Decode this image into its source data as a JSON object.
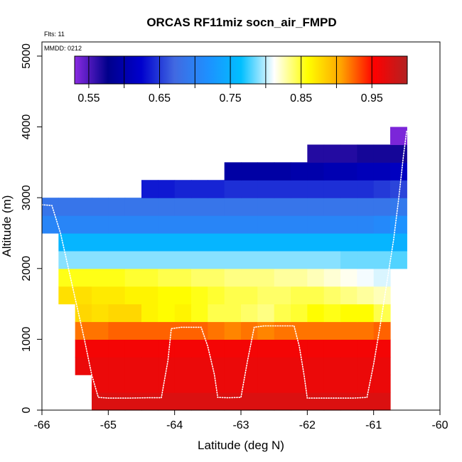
{
  "chart_data": {
    "type": "heatmap",
    "title": "ORCAS RF11miz socn_air_FMPD",
    "xlabel": "Latitude (deg N)",
    "ylabel": "Altitude (m)",
    "xlim": [
      -66,
      -60
    ],
    "ylim": [
      0,
      5200
    ],
    "xticks": [
      -66,
      -65,
      -64,
      -63,
      -62,
      -61,
      -60
    ],
    "yticks": [
      0,
      1000,
      2000,
      3000,
      4000,
      5000
    ],
    "annotations": {
      "flights": "Flts: 11",
      "date": "MMDD: 0212"
    },
    "colorbar": {
      "range": [
        0.53,
        1.0
      ],
      "ticks": [
        0.55,
        0.65,
        0.75,
        0.85,
        0.95
      ],
      "boundaries": [
        0.55,
        0.6,
        0.65,
        0.7,
        0.75,
        0.8,
        0.85,
        0.9,
        0.95
      ],
      "stops": [
        "#8a2be2",
        "#00008b",
        "#0000cd",
        "#4169e1",
        "#1e90ff",
        "#00bfff",
        "#ffffff",
        "#ffff00",
        "#ffa500",
        "#ff0000",
        "#b22222"
      ]
    },
    "x_min": -66.0,
    "dx": 0.25,
    "dy": 250,
    "rows": [
      {
        "y": 0,
        "start": 3,
        "values": [
          0.975,
          0.975,
          0.975,
          0.975,
          0.975,
          0.975,
          0.975,
          0.975,
          0.975,
          0.975,
          0.975,
          0.975,
          0.975,
          0.975,
          0.975,
          0.975,
          0.975,
          0.975
        ]
      },
      {
        "y": 250,
        "start": 3,
        "values": [
          0.965,
          0.965,
          0.965,
          0.965,
          0.965,
          0.965,
          0.965,
          0.965,
          0.965,
          0.965,
          0.965,
          0.965,
          0.965,
          0.965,
          0.965,
          0.965,
          0.965,
          0.965
        ]
      },
      {
        "y": 500,
        "start": 2,
        "values": [
          0.965,
          0.965,
          0.965,
          0.965,
          0.965,
          0.965,
          0.965,
          0.965,
          0.965,
          0.965,
          0.965,
          0.965,
          0.965,
          0.965,
          0.965,
          0.965,
          0.965,
          0.965,
          0.965
        ]
      },
      {
        "y": 750,
        "start": 2,
        "values": [
          0.96,
          0.96,
          0.96,
          0.96,
          0.96,
          0.96,
          0.96,
          0.96,
          0.96,
          0.96,
          0.96,
          0.96,
          0.96,
          0.96,
          0.96,
          0.96,
          0.96,
          0.96,
          0.96
        ]
      },
      {
        "y": 1000,
        "start": 2,
        "values": [
          0.92,
          0.92,
          0.925,
          0.925,
          0.925,
          0.925,
          0.925,
          0.925,
          0.92,
          0.915,
          0.92,
          0.915,
          0.92,
          0.92,
          0.92,
          0.92,
          0.92,
          0.92,
          0.925
        ]
      },
      {
        "y": 1250,
        "start": 2,
        "values": [
          0.88,
          0.875,
          0.88,
          0.88,
          0.865,
          0.86,
          0.865,
          0.855,
          0.845,
          0.845,
          0.84,
          0.835,
          0.845,
          0.85,
          0.86,
          0.855,
          0.86,
          0.86,
          0.845
        ]
      },
      {
        "y": 1500,
        "start": 1,
        "values": [
          0.875,
          0.875,
          0.87,
          0.87,
          0.865,
          0.865,
          0.86,
          0.86,
          0.855,
          0.85,
          0.845,
          0.845,
          0.84,
          0.84,
          0.845,
          0.845,
          0.84,
          0.835,
          0.83,
          0.825
        ]
      },
      {
        "y": 1750,
        "start": 1,
        "values": [
          0.855,
          0.855,
          0.855,
          0.855,
          0.85,
          0.85,
          0.845,
          0.845,
          0.84,
          0.84,
          0.835,
          0.835,
          0.835,
          0.83,
          0.83,
          0.825,
          0.82,
          0.815,
          0.81,
          0.805
        ]
      },
      {
        "y": 2000,
        "start": 1,
        "values": [
          0.79,
          0.79,
          0.79,
          0.79,
          0.79,
          0.79,
          0.79,
          0.79,
          0.79,
          0.79,
          0.79,
          0.79,
          0.79,
          0.79,
          0.79,
          0.79,
          0.79,
          0.785,
          0.785,
          0.785,
          0.78
        ]
      },
      {
        "y": 2250,
        "start": 1,
        "values": [
          0.755,
          0.755,
          0.755,
          0.755,
          0.755,
          0.755,
          0.755,
          0.755,
          0.755,
          0.755,
          0.755,
          0.755,
          0.755,
          0.755,
          0.755,
          0.755,
          0.755,
          0.755,
          0.755,
          0.755,
          0.75
        ]
      },
      {
        "y": 2500,
        "start": 0,
        "values": [
          0.705,
          0.705,
          0.705,
          0.705,
          0.705,
          0.705,
          0.705,
          0.705,
          0.705,
          0.705,
          0.705,
          0.705,
          0.705,
          0.705,
          0.705,
          0.705,
          0.705,
          0.705,
          0.705,
          0.705,
          0.71,
          0.72
        ]
      },
      {
        "y": 2750,
        "start": 0,
        "values": [
          0.685,
          0.685,
          0.685,
          0.685,
          0.685,
          0.685,
          0.685,
          0.685,
          0.685,
          0.685,
          0.685,
          0.685,
          0.685,
          0.685,
          0.685,
          0.685,
          0.685,
          0.685,
          0.685,
          0.685,
          0.685,
          0.69
        ]
      },
      {
        "y": 3000,
        "start": 6,
        "values": [
          0.635,
          0.635,
          0.64,
          0.64,
          0.64,
          0.645,
          0.645,
          0.645,
          0.645,
          0.645,
          0.645,
          0.645,
          0.645,
          0.645,
          0.65,
          0.655
        ]
      },
      {
        "y": 3250,
        "start": 11,
        "values": [
          0.595,
          0.595,
          0.595,
          0.595,
          0.6,
          0.6,
          0.605,
          0.605,
          0.61,
          0.61,
          0.615
        ]
      },
      {
        "y": 3500,
        "start": 16,
        "values": [
          0.565,
          0.565,
          0.565,
          0.57,
          0.57,
          0.57
        ]
      },
      {
        "y": 3750,
        "start": 21,
        "values": [
          0.535
        ]
      }
    ],
    "flight_track": [
      [
        -66.0,
        2900
      ],
      [
        -65.85,
        2890
      ],
      [
        -65.72,
        2500
      ],
      [
        -65.6,
        2000
      ],
      [
        -65.48,
        1500
      ],
      [
        -65.36,
        1000
      ],
      [
        -65.25,
        500
      ],
      [
        -65.15,
        180
      ],
      [
        -65.0,
        170
      ],
      [
        -64.7,
        170
      ],
      [
        -64.4,
        175
      ],
      [
        -64.2,
        175
      ],
      [
        -64.1,
        700
      ],
      [
        -64.05,
        1150
      ],
      [
        -63.9,
        1170
      ],
      [
        -63.6,
        1170
      ],
      [
        -63.5,
        900
      ],
      [
        -63.4,
        500
      ],
      [
        -63.35,
        180
      ],
      [
        -63.2,
        175
      ],
      [
        -63.0,
        180
      ],
      [
        -62.9,
        700
      ],
      [
        -62.8,
        1170
      ],
      [
        -62.65,
        1190
      ],
      [
        -62.2,
        1190
      ],
      [
        -62.12,
        900
      ],
      [
        -62.05,
        500
      ],
      [
        -62.0,
        170
      ],
      [
        -61.6,
        170
      ],
      [
        -61.3,
        170
      ],
      [
        -61.1,
        180
      ],
      [
        -61.0,
        650
      ],
      [
        -60.9,
        1200
      ],
      [
        -60.8,
        1800
      ],
      [
        -60.7,
        2400
      ],
      [
        -60.62,
        3000
      ],
      [
        -60.55,
        3600
      ],
      [
        -60.5,
        3950
      ]
    ]
  }
}
